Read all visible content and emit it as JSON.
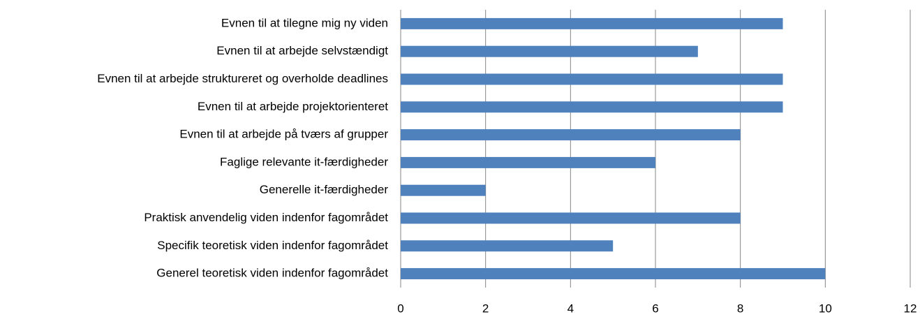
{
  "chart_data": {
    "type": "hbar",
    "categories": [
      "Evnen til at tilegne mig ny viden",
      "Evnen til at arbejde selvstændigt",
      "Evnen til at arbejde struktureret og overholde deadlines",
      "Evnen til at arbejde projektorienteret",
      "Evnen til at arbejde på tværs af grupper",
      "Faglige relevante it-færdigheder",
      "Generelle it-færdigheder",
      "Praktisk anvendelig viden indenfor fagområdet",
      "Specifik teoretisk viden indenfor fagområdet",
      "Generel teoretisk viden indenfor fagområdet"
    ],
    "values": [
      9,
      7,
      9,
      9,
      8,
      6,
      2,
      8,
      5,
      10
    ],
    "color": "#4f81bd",
    "xlim": [
      0,
      12
    ],
    "xticks": [
      0,
      2,
      4,
      6,
      8,
      10,
      12
    ],
    "grid": true
  }
}
